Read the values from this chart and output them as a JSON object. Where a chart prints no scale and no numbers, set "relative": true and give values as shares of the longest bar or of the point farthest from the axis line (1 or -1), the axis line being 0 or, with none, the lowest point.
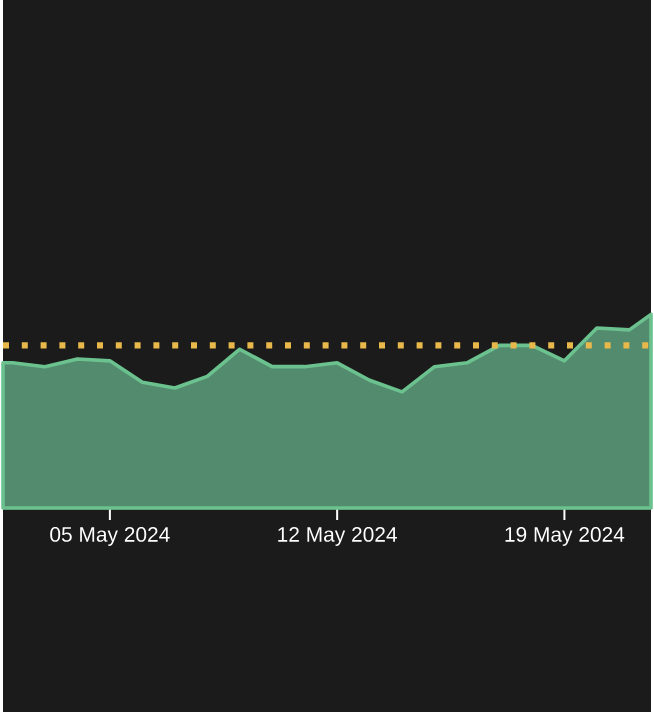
{
  "chart_data": {
    "type": "area",
    "relative": true,
    "x": [
      "2024-05-01T17:00",
      "2024-05-02",
      "2024-05-03",
      "2024-05-04",
      "2024-05-05",
      "2024-05-06",
      "2024-05-07",
      "2024-05-08",
      "2024-05-09",
      "2024-05-10",
      "2024-05-11",
      "2024-05-12",
      "2024-05-13",
      "2024-05-14",
      "2024-05-15",
      "2024-05-16",
      "2024-05-17",
      "2024-05-18",
      "2024-05-19",
      "2024-05-20",
      "2024-05-21",
      "2024-05-21T16:00"
    ],
    "series": [
      {
        "color": "#6bc28f",
        "values": [
          0.75,
          0.75,
          0.73,
          0.77,
          0.76,
          0.65,
          0.62,
          0.68,
          0.82,
          0.73,
          0.73,
          0.75,
          0.66,
          0.6,
          0.73,
          0.75,
          0.84,
          0.84,
          0.76,
          0.93,
          0.92,
          1.0
        ]
      }
    ],
    "xlim": [
      "2024-05-01T17:00",
      "2024-05-21T16:00"
    ],
    "xticks": [
      {
        "value": "2024-05-05",
        "label": "05 May 2024"
      },
      {
        "value": "2024-05-12",
        "label": "12 May 2024"
      },
      {
        "value": "2024-05-19",
        "label": "19 May 2024"
      }
    ],
    "ref_lines": [
      {
        "axis": "y",
        "value": 0.84,
        "color": "#e8b84a",
        "line_style": "dotted"
      }
    ]
  }
}
